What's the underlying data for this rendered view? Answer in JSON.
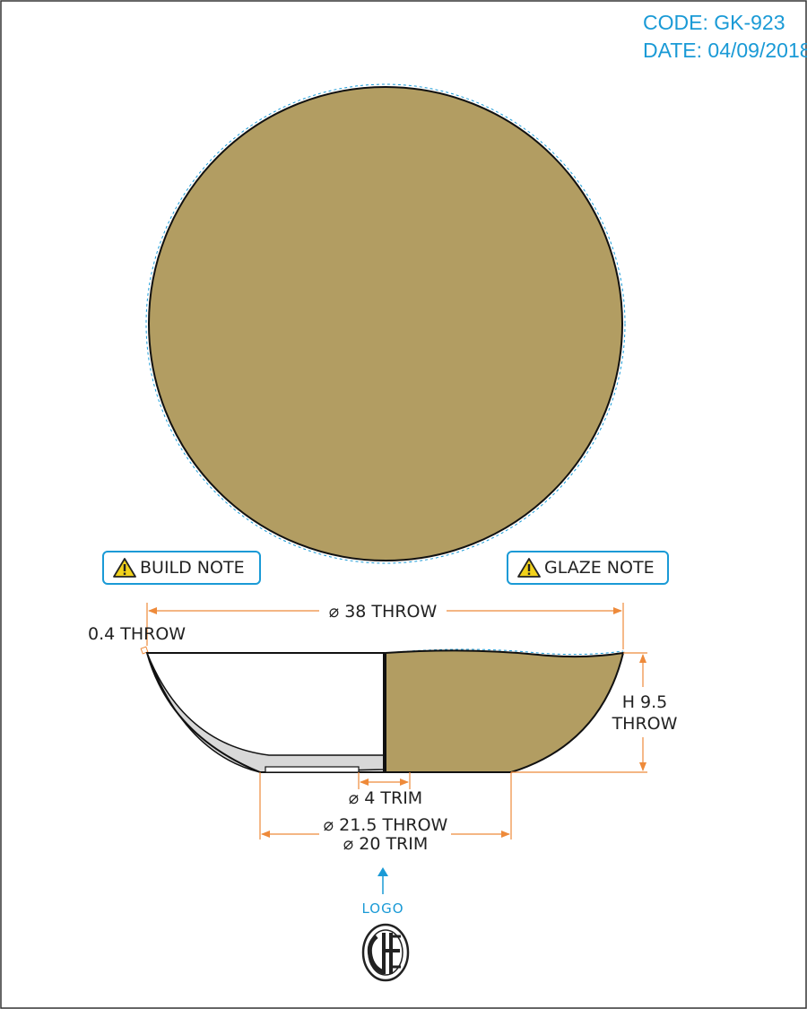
{
  "header": {
    "code": "CODE: GK-923",
    "date": "DATE: 04/09/2018"
  },
  "notes": {
    "build": "BUILD NOTE",
    "glaze": "GLAZE NOTE"
  },
  "dimensions": {
    "outer_diameter": "⌀ 38 THROW",
    "wall_thickness": "0.4 THROW",
    "height_line1": "H 9.5",
    "height_line2": "THROW",
    "foot_trim": "⌀ 4 TRIM",
    "base_throw": "⌀ 21.5 THROW",
    "base_trim": "⌀ 20 TRIM"
  },
  "logo": {
    "label": "LOGO"
  },
  "colors": {
    "glaze": "#b29d62",
    "dimension": "#ee8a3a",
    "accent": "#1a9ad6",
    "section": "#d8d8d8"
  },
  "icons": [
    "warning-icon",
    "logo-arrow-icon",
    "brand-logo-icon"
  ]
}
